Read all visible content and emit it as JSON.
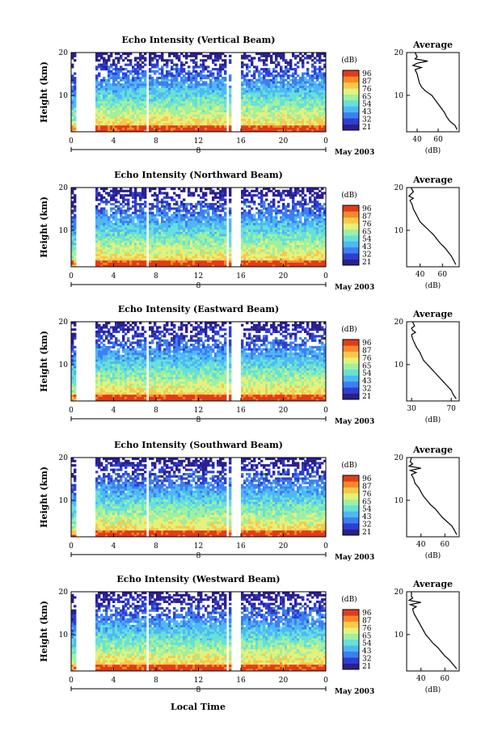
{
  "time_axis_label": "Local Time",
  "date_label": "May 2003",
  "date_marker": "8",
  "average_title": "Average",
  "units_label": "(dB)",
  "y_label": "Height (km)",
  "colorbar_ticks": [
    "96",
    "87",
    "76",
    "65",
    "54",
    "43",
    "32",
    "21"
  ],
  "colors": {
    "colormap": [
      "#2b1f8f",
      "#2e3fd0",
      "#3d7ff0",
      "#4fb7f5",
      "#66e0d8",
      "#9ff0a0",
      "#e6f07a",
      "#f8c84a",
      "#f48a2a",
      "#e33b1a"
    ]
  },
  "chart_data": [
    {
      "type": "heatmap",
      "title": "Echo Intensity (Vertical Beam)",
      "xlabel": "Local Time",
      "ylabel": "Height (km)",
      "x_ticks": [
        "0",
        "4",
        "8",
        "12",
        "16",
        "20",
        "0"
      ],
      "y_ticks": [
        "20",
        "10"
      ],
      "xlim": [
        0,
        24
      ],
      "ylim": [
        1.5,
        20
      ],
      "colorbar": {
        "label": "(dB)",
        "ticks": [
          96,
          87,
          76,
          65,
          54,
          43,
          32,
          21
        ]
      },
      "data_gaps_hours": [
        [
          0.5,
          2.3
        ],
        [
          7.1,
          7.4
        ],
        [
          14.6,
          14.9
        ],
        [
          15.2,
          16.0
        ]
      ],
      "average_profile": {
        "title": "Average",
        "xlabel": "(dB)",
        "x_ticks": [
          "40",
          "60"
        ],
        "y_ticks": [
          "20",
          "10"
        ],
        "xlim": [
          30,
          80
        ],
        "ylim": [
          1.5,
          20
        ],
        "height_km": [
          2,
          3,
          4,
          5,
          6,
          7,
          8,
          9,
          10,
          11,
          12,
          13,
          14,
          15,
          16,
          16.5,
          17,
          17.5,
          18,
          18.5,
          19,
          20
        ],
        "db": [
          78,
          76,
          71,
          68,
          66,
          63,
          60,
          57,
          54,
          48,
          44,
          42,
          41,
          40,
          38,
          44,
          36,
          40,
          50,
          38,
          40,
          38
        ]
      }
    },
    {
      "type": "heatmap",
      "title": "Echo Intensity (Northward Beam)",
      "xlabel": "Local Time",
      "ylabel": "Height (km)",
      "x_ticks": [
        "0",
        "4",
        "8",
        "12",
        "16",
        "20",
        "0"
      ],
      "y_ticks": [
        "20",
        "10"
      ],
      "xlim": [
        0,
        24
      ],
      "ylim": [
        1.5,
        20
      ],
      "colorbar": {
        "label": "(dB)",
        "ticks": [
          96,
          87,
          76,
          65,
          54,
          43,
          32,
          21
        ]
      },
      "data_gaps_hours": [
        [
          0.5,
          2.3
        ],
        [
          7.1,
          7.4
        ],
        [
          14.6,
          14.9
        ],
        [
          15.2,
          16.0
        ]
      ],
      "average_profile": {
        "title": "Average",
        "xlabel": "(dB)",
        "x_ticks": [
          "40",
          "60"
        ],
        "y_ticks": [
          "20",
          "10"
        ],
        "xlim": [
          28,
          75
        ],
        "ylim": [
          1.5,
          20
        ],
        "height_km": [
          2,
          3,
          4,
          5,
          6,
          7,
          8,
          9,
          10,
          11,
          12,
          13,
          14,
          15,
          16,
          17,
          17.5,
          18,
          18.5,
          19,
          20
        ],
        "db": [
          72,
          70,
          68,
          65,
          62,
          58,
          55,
          52,
          48,
          44,
          40,
          38,
          36,
          34,
          33,
          31,
          34,
          30,
          32,
          34,
          32
        ]
      }
    },
    {
      "type": "heatmap",
      "title": "Echo Intensity (Eastward Beam)",
      "xlabel": "Local Time",
      "ylabel": "Height (km)",
      "x_ticks": [
        "0",
        "4",
        "8",
        "12",
        "16",
        "20",
        "0"
      ],
      "y_ticks": [
        "20",
        "10"
      ],
      "xlim": [
        0,
        24
      ],
      "ylim": [
        1.5,
        20
      ],
      "colorbar": {
        "label": "(dB)",
        "ticks": [
          96,
          87,
          76,
          65,
          54,
          43,
          32,
          21
        ]
      },
      "data_gaps_hours": [
        [
          0.5,
          2.3
        ],
        [
          7.1,
          7.4
        ],
        [
          14.6,
          14.9
        ],
        [
          15.2,
          16.0
        ]
      ],
      "average_profile": {
        "title": "Average",
        "xlabel": "(dB)",
        "x_ticks": [
          "30",
          "70"
        ],
        "y_ticks": [
          "20",
          "10"
        ],
        "xlim": [
          25,
          78
        ],
        "ylim": [
          1.5,
          20
        ],
        "height_km": [
          2,
          3,
          4,
          5,
          6,
          7,
          8,
          9,
          10,
          11,
          12,
          13,
          14,
          15,
          16,
          17,
          17.5,
          18,
          18.5,
          19,
          20
        ],
        "db": [
          75,
          72,
          70,
          66,
          62,
          58,
          54,
          50,
          46,
          42,
          40,
          38,
          35,
          33,
          31,
          30,
          34,
          31,
          30,
          33,
          31
        ]
      }
    },
    {
      "type": "heatmap",
      "title": "Echo Intensity (Southward Beam)",
      "xlabel": "Local Time",
      "ylabel": "Height (km)",
      "x_ticks": [
        "0",
        "4",
        "8",
        "12",
        "16",
        "20",
        "0"
      ],
      "y_ticks": [
        "20",
        "10"
      ],
      "xlim": [
        0,
        24
      ],
      "ylim": [
        1.5,
        20
      ],
      "colorbar": {
        "label": "(dB)",
        "ticks": [
          96,
          87,
          76,
          65,
          54,
          43,
          32,
          21
        ]
      },
      "data_gaps_hours": [
        [
          0.5,
          2.3
        ],
        [
          7.1,
          7.4
        ],
        [
          14.6,
          14.9
        ],
        [
          15.2,
          16.0
        ]
      ],
      "average_profile": {
        "title": "Average",
        "xlabel": "(dB)",
        "x_ticks": [
          "40",
          "60"
        ],
        "y_ticks": [
          "20",
          "10"
        ],
        "xlim": [
          28,
          72
        ],
        "ylim": [
          1.5,
          20
        ],
        "height_km": [
          2,
          3,
          4,
          5,
          6,
          7,
          8,
          9,
          10,
          11,
          12,
          13,
          14,
          15,
          16,
          16.5,
          17,
          17.5,
          18,
          18.5,
          19,
          20
        ],
        "db": [
          70,
          68,
          66,
          62,
          58,
          55,
          52,
          48,
          45,
          42,
          40,
          38,
          35,
          34,
          32,
          36,
          31,
          40,
          30,
          33,
          31,
          32
        ]
      }
    },
    {
      "type": "heatmap",
      "title": "Echo Intensity (Westward Beam)",
      "xlabel": "Local Time",
      "ylabel": "Height (km)",
      "x_ticks": [
        "0",
        "4",
        "8",
        "12",
        "16",
        "20",
        "0"
      ],
      "y_ticks": [
        "20",
        "10"
      ],
      "xlim": [
        0,
        24
      ],
      "ylim": [
        1.5,
        20
      ],
      "colorbar": {
        "label": "(dB)",
        "ticks": [
          96,
          87,
          76,
          65,
          54,
          43,
          32,
          21
        ]
      },
      "data_gaps_hours": [
        [
          0.5,
          2.3
        ],
        [
          7.1,
          7.4
        ],
        [
          14.6,
          14.9
        ],
        [
          15.2,
          16.0
        ]
      ],
      "average_profile": {
        "title": "Average",
        "xlabel": "(dB)",
        "x_ticks": [
          "40",
          "60"
        ],
        "y_ticks": [
          "20",
          "10"
        ],
        "xlim": [
          28,
          72
        ],
        "ylim": [
          1.5,
          20
        ],
        "height_km": [
          2,
          3,
          4,
          5,
          6,
          7,
          8,
          9,
          10,
          11,
          12,
          13,
          14,
          15,
          16,
          16.5,
          17,
          17.5,
          18,
          18.5,
          19,
          20
        ],
        "db": [
          70,
          67,
          64,
          60,
          57,
          54,
          50,
          47,
          44,
          42,
          40,
          38,
          36,
          34,
          33,
          36,
          31,
          40,
          30,
          33,
          32,
          32
        ]
      }
    }
  ]
}
